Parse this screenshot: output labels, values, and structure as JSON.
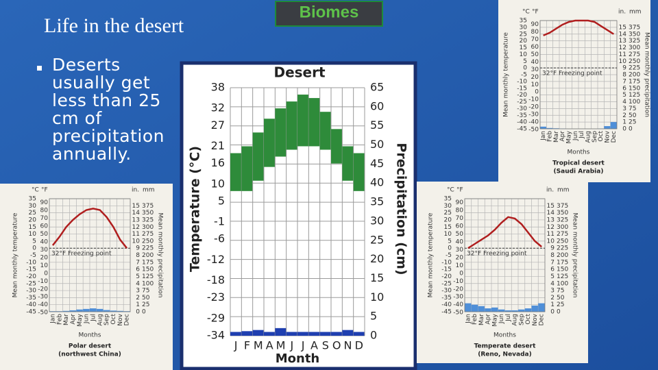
{
  "slide": {
    "title": "Life in the desert",
    "badge": "Biomes",
    "bullet": "Deserts usually get less than 25 cm of precipitation annually."
  },
  "chart_data": [
    {
      "type": "range",
      "title": "Desert",
      "categories": [
        "J",
        "F",
        "M",
        "A",
        "M",
        "J",
        "J",
        "A",
        "S",
        "O",
        "N",
        "D"
      ],
      "xlabel": "Month",
      "ylabel": "Temperature (°C)",
      "y2label": "Precipitation (cm)",
      "ylim": [
        -34,
        38
      ],
      "yticks": [
        38,
        32,
        27,
        21,
        16,
        10,
        5,
        -1,
        -6,
        -12,
        -18,
        -23,
        -29,
        -34
      ],
      "y2lim": [
        0,
        65
      ],
      "y2ticks": [
        65,
        60,
        55,
        50,
        45,
        40,
        35,
        30,
        25,
        20,
        15,
        10,
        5,
        0
      ],
      "temp_min": [
        8,
        8,
        11,
        15,
        18,
        20,
        21,
        21,
        20,
        16,
        11,
        8
      ],
      "temp_max": [
        19,
        21,
        25,
        29,
        32,
        34,
        36,
        35,
        31,
        26,
        21,
        19
      ],
      "temp_color": "#2e8b3a",
      "precipitation": [
        1,
        1.2,
        1.5,
        1,
        2,
        1,
        1,
        1,
        1,
        1,
        1.5,
        1
      ],
      "precip_color": "#1f3fb0",
      "grid": true
    },
    {
      "type": "climate",
      "caption": [
        "Tropical desert",
        "(Saudi Arabia)"
      ],
      "categories": [
        "Jan",
        "Feb",
        "Mar",
        "Apr",
        "May",
        "Jun",
        "Jul",
        "Aug",
        "Sep",
        "Oct",
        "Nov",
        "Dec"
      ],
      "xlabel": "Months",
      "ylabel": "Mean monthly temperature",
      "y2label": "Mean monthly precipitation",
      "c_unit": "°C",
      "f_unit": "°F",
      "in_unit": "in.",
      "mm_unit": "mm",
      "ylim": [
        -45,
        35
      ],
      "yticks": [
        35,
        30,
        25,
        20,
        15,
        10,
        5,
        0,
        -5,
        -10,
        -15,
        -20,
        -25,
        -30,
        -35,
        -40,
        -45
      ],
      "flim": [
        -49,
        95
      ],
      "fticks": [
        90,
        80,
        70,
        60,
        50,
        40,
        30,
        20,
        10,
        0,
        -10,
        -20,
        -30,
        -40,
        -50
      ],
      "inlim": [
        0,
        16
      ],
      "inticks": [
        15,
        14,
        13,
        12,
        11,
        10,
        9,
        8,
        7,
        6,
        5,
        4,
        3,
        2,
        1,
        0
      ],
      "y2lim": [
        0,
        400
      ],
      "y2ticks": [
        375,
        350,
        325,
        300,
        275,
        250,
        225,
        200,
        175,
        150,
        125,
        100,
        75,
        50,
        25,
        0
      ],
      "temperature": [
        24,
        26,
        29,
        32,
        34,
        35,
        35,
        35,
        34,
        31,
        28,
        25
      ],
      "temp_color": "#b01e1e",
      "precipitation": [
        8,
        3,
        2,
        1,
        0,
        0,
        0,
        0,
        0,
        1,
        10,
        25
      ],
      "precip_color": "#4f8fd8",
      "freezing": 0,
      "annotation": "32°F Freezing point"
    },
    {
      "type": "climate",
      "caption": [
        "Polar desert",
        "(northwest China)"
      ],
      "categories": [
        "Jan",
        "Feb",
        "Mar",
        "Apr",
        "May",
        "Jun",
        "Jul",
        "Aug",
        "Sep",
        "Oct",
        "Nov",
        "Dec"
      ],
      "xlabel": "Months",
      "ylabel": "Mean monthly temperature",
      "y2label": "Mean monthly precipitation",
      "c_unit": "°C",
      "f_unit": "°F",
      "in_unit": "in.",
      "mm_unit": "mm",
      "ylim": [
        -45,
        35
      ],
      "yticks": [
        35,
        30,
        25,
        20,
        15,
        10,
        5,
        0,
        -5,
        -10,
        -15,
        -20,
        -25,
        -30,
        -35,
        -40,
        -45
      ],
      "flim": [
        -49,
        95
      ],
      "fticks": [
        90,
        80,
        70,
        60,
        50,
        40,
        30,
        20,
        10,
        0,
        -10,
        -20,
        -30,
        -40,
        -50
      ],
      "inlim": [
        0,
        16
      ],
      "inticks": [
        15,
        14,
        13,
        12,
        11,
        10,
        9,
        8,
        7,
        6,
        5,
        4,
        3,
        2,
        1,
        0
      ],
      "y2lim": [
        0,
        400
      ],
      "y2ticks": [
        375,
        350,
        325,
        300,
        275,
        250,
        225,
        200,
        175,
        150,
        125,
        100,
        75,
        50,
        25,
        0
      ],
      "temperature": [
        2,
        8,
        15,
        20,
        24,
        27,
        28,
        27,
        22,
        15,
        6,
        0
      ],
      "temp_color": "#b01e1e",
      "precipitation": [
        2,
        2,
        3,
        5,
        8,
        10,
        12,
        10,
        6,
        4,
        3,
        2
      ],
      "precip_color": "#4f8fd8",
      "freezing": 0,
      "annotation": "32°F Freezing point"
    },
    {
      "type": "climate",
      "caption": [
        "Temperate desert",
        "(Reno, Nevada)"
      ],
      "categories": [
        "Jan",
        "Feb",
        "Mar",
        "Apr",
        "May",
        "Jun",
        "Jul",
        "Aug",
        "Sep",
        "Oct",
        "Nov",
        "Dec"
      ],
      "xlabel": "Months",
      "ylabel": "Mean monthly temperature",
      "y2label": "Mean monthly precipitation",
      "c_unit": "°C",
      "f_unit": "°F",
      "in_unit": "in.",
      "mm_unit": "mm",
      "ylim": [
        -45,
        35
      ],
      "yticks": [
        35,
        30,
        25,
        20,
        15,
        10,
        5,
        0,
        -5,
        -10,
        -15,
        -20,
        -25,
        -30,
        -35,
        -40,
        -45
      ],
      "flim": [
        -49,
        95
      ],
      "fticks": [
        90,
        80,
        70,
        60,
        50,
        40,
        30,
        20,
        10,
        0,
        -10,
        -20,
        -30,
        -40,
        -50
      ],
      "inlim": [
        0,
        16
      ],
      "inticks": [
        15,
        14,
        13,
        12,
        11,
        10,
        9,
        8,
        7,
        6,
        5,
        4,
        3,
        2,
        1,
        0
      ],
      "y2lim": [
        0,
        400
      ],
      "y2ticks": [
        375,
        350,
        325,
        300,
        275,
        250,
        225,
        200,
        175,
        150,
        125,
        100,
        75,
        50,
        25,
        0
      ],
      "temperature": [
        0,
        3,
        6,
        9,
        13,
        18,
        22,
        21,
        17,
        11,
        5,
        1
      ],
      "temp_color": "#b01e1e",
      "precipitation": [
        30,
        25,
        20,
        12,
        15,
        8,
        5,
        5,
        8,
        12,
        22,
        30
      ],
      "precip_color": "#4f8fd8",
      "freezing": 0,
      "annotation": "32°F Freezing point"
    }
  ]
}
